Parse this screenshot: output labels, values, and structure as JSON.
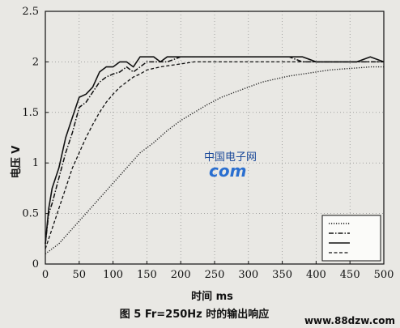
{
  "chart_data": {
    "type": "line",
    "title": "",
    "xlabel": "时间 ms",
    "ylabel": "电压 V",
    "xlim": [
      0,
      500
    ],
    "ylim": [
      0,
      2.5
    ],
    "xticks": [
      0,
      50,
      100,
      150,
      200,
      250,
      300,
      350,
      400,
      450,
      500
    ],
    "yticks": [
      0,
      0.5,
      1,
      1.5,
      2,
      2.5
    ],
    "grid": true,
    "legend_position": "bottom-right",
    "series": [
      {
        "style": "solid",
        "color": "#111111",
        "x": [
          0,
          5,
          10,
          20,
          30,
          40,
          50,
          60,
          70,
          80,
          90,
          100,
          110,
          120,
          130,
          140,
          150,
          160,
          170,
          180,
          200,
          220,
          240,
          260,
          280,
          300,
          320,
          340,
          360,
          380,
          400,
          420,
          440,
          460,
          480,
          500
        ],
        "y": [
          0.2,
          0.55,
          0.75,
          0.95,
          1.25,
          1.45,
          1.65,
          1.68,
          1.75,
          1.9,
          1.95,
          1.95,
          2.0,
          2.0,
          1.95,
          2.05,
          2.05,
          2.05,
          2.0,
          2.05,
          2.05,
          2.05,
          2.05,
          2.05,
          2.05,
          2.05,
          2.05,
          2.05,
          2.05,
          2.05,
          2.0,
          2.0,
          2.0,
          2.0,
          2.05,
          2.0
        ]
      },
      {
        "style": "dashdot",
        "color": "#111111",
        "x": [
          0,
          5,
          10,
          20,
          30,
          40,
          50,
          60,
          70,
          80,
          90,
          100,
          110,
          120,
          130,
          140,
          150,
          160,
          170,
          180,
          200,
          220,
          240,
          260,
          280,
          300,
          320,
          340,
          360,
          380,
          400,
          420,
          440,
          460,
          480,
          500
        ],
        "y": [
          0.2,
          0.5,
          0.6,
          0.85,
          1.1,
          1.3,
          1.55,
          1.6,
          1.7,
          1.8,
          1.85,
          1.88,
          1.9,
          1.95,
          1.9,
          1.95,
          2.0,
          2.0,
          2.0,
          2.0,
          2.05,
          2.05,
          2.05,
          2.05,
          2.05,
          2.05,
          2.05,
          2.05,
          2.05,
          2.0,
          2.0,
          2.0,
          2.0,
          2.0,
          2.0,
          2.0
        ]
      },
      {
        "style": "dashed",
        "color": "#111111",
        "x": [
          0,
          10,
          20,
          30,
          40,
          50,
          60,
          70,
          80,
          90,
          100,
          110,
          120,
          130,
          140,
          150,
          170,
          190,
          200,
          220,
          240,
          260,
          280,
          300,
          320,
          340,
          360,
          380,
          400,
          420,
          440,
          460,
          480,
          500
        ],
        "y": [
          0.15,
          0.35,
          0.55,
          0.75,
          0.95,
          1.1,
          1.25,
          1.38,
          1.5,
          1.6,
          1.68,
          1.75,
          1.8,
          1.85,
          1.88,
          1.92,
          1.95,
          1.97,
          1.98,
          2.0,
          2.0,
          2.0,
          2.0,
          2.0,
          2.0,
          2.0,
          2.0,
          2.0,
          2.0,
          2.0,
          2.0,
          2.0,
          2.0,
          2.0
        ]
      },
      {
        "style": "dotted",
        "color": "#222222",
        "x": [
          0,
          20,
          40,
          60,
          80,
          100,
          120,
          140,
          160,
          180,
          200,
          220,
          240,
          260,
          280,
          300,
          320,
          340,
          360,
          380,
          400,
          420,
          440,
          460,
          480,
          500
        ],
        "y": [
          0.1,
          0.2,
          0.35,
          0.5,
          0.65,
          0.8,
          0.95,
          1.1,
          1.2,
          1.32,
          1.42,
          1.5,
          1.58,
          1.65,
          1.7,
          1.75,
          1.8,
          1.83,
          1.86,
          1.88,
          1.9,
          1.92,
          1.93,
          1.94,
          1.95,
          1.95
        ]
      }
    ],
    "legend_styles": [
      "dotted",
      "dashdot",
      "solid",
      "dashed"
    ]
  },
  "watermark": {
    "text": "中国电子网",
    "logo": "com"
  },
  "caption": {
    "text": "图 5  Fr=250Hz 时的输出响应"
  },
  "site_url": {
    "text": "www.88dzw.com"
  }
}
